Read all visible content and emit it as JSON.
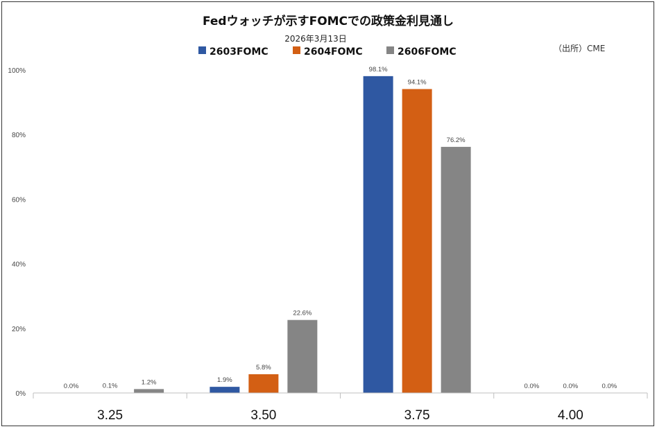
{
  "chart_data": {
    "type": "bar",
    "title": "Fedウォッチが示すFOMCでの政策金利見通し",
    "subtitle": "2026年3月13日",
    "source": "（出所）CME",
    "categories": [
      "3.25",
      "3.50",
      "3.75",
      "4.00"
    ],
    "series": [
      {
        "name": "2603FOMC",
        "color": "#2f58a2",
        "values": [
          0.0,
          1.9,
          98.1,
          0.0
        ],
        "labels": [
          "0.0%",
          "1.9%",
          "98.1%",
          "0.0%"
        ]
      },
      {
        "name": "2604FOMC",
        "color": "#d35f14",
        "values": [
          0.1,
          5.8,
          94.1,
          0.0
        ],
        "labels": [
          "0.1%",
          "5.8%",
          "94.1%",
          "0.0%"
        ]
      },
      {
        "name": "2606FOMC",
        "color": "#858585",
        "values": [
          1.2,
          22.6,
          76.2,
          0.0
        ],
        "labels": [
          "1.2%",
          "22.6%",
          "76.2%",
          "0.0%"
        ]
      }
    ],
    "yticks": [
      "0%",
      "20%",
      "40%",
      "60%",
      "80%",
      "100%"
    ],
    "ytick_values": [
      0,
      20,
      40,
      60,
      80,
      100
    ],
    "ylim": [
      0,
      100
    ],
    "grid": false,
    "legend_position": "top"
  }
}
